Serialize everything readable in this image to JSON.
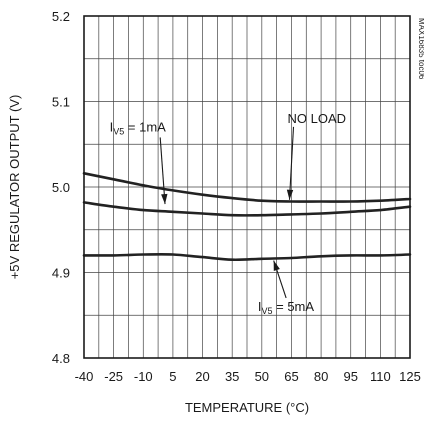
{
  "chart_data": {
    "type": "line",
    "figure_id": "MAX16835 toc06",
    "xlabel": "TEMPERATURE (°C)",
    "ylabel": "+5V REGULATOR OUTPUT (V)",
    "xlim": [
      -40,
      125
    ],
    "ylim": [
      4.8,
      5.2
    ],
    "xticks": [
      -40,
      -25,
      -10,
      5,
      20,
      35,
      50,
      65,
      80,
      95,
      110,
      125
    ],
    "yticks": [
      4.8,
      4.9,
      5.0,
      5.1,
      5.2
    ],
    "x_gridlines": [
      -40,
      -32.5,
      -25,
      -17.5,
      -10,
      -2.5,
      5,
      12.5,
      20,
      27.5,
      35,
      42.5,
      50,
      57.5,
      65,
      72.5,
      80,
      87.5,
      95,
      102.5,
      110,
      117.5,
      125
    ],
    "y_gridlines": [
      4.8,
      4.85,
      4.9,
      4.95,
      5.0,
      5.05,
      5.1,
      5.15,
      5.2
    ],
    "grid": true,
    "series": [
      {
        "name": "NO LOAD",
        "x": [
          -40,
          -25,
          -10,
          5,
          20,
          35,
          50,
          65,
          80,
          95,
          110,
          125
        ],
        "y": [
          5.016,
          5.009,
          5.002,
          4.996,
          4.991,
          4.987,
          4.984,
          4.983,
          4.983,
          4.983,
          4.984,
          4.986
        ]
      },
      {
        "name": "IV5 = 1mA",
        "x": [
          -40,
          -25,
          -10,
          5,
          20,
          35,
          50,
          65,
          80,
          95,
          110,
          125
        ],
        "y": [
          4.982,
          4.977,
          4.973,
          4.971,
          4.969,
          4.967,
          4.967,
          4.968,
          4.969,
          4.971,
          4.973,
          4.977
        ]
      },
      {
        "name": "IV5 = 5mA",
        "x": [
          -40,
          -25,
          -10,
          5,
          20,
          35,
          50,
          65,
          80,
          95,
          110,
          125
        ],
        "y": [
          4.92,
          4.92,
          4.921,
          4.921,
          4.918,
          4.915,
          4.916,
          4.917,
          4.919,
          4.92,
          4.92,
          4.921
        ]
      }
    ],
    "annotations": [
      {
        "main": "I",
        "sub": "V5",
        "rest": " = 1mA",
        "series": "IV5 = 1mA",
        "label_at": [
          -27,
          5.065
        ],
        "arrow_to": [
          1,
          4.98
        ]
      },
      {
        "main": "NO LOAD",
        "sub": "",
        "rest": "",
        "series": "NO LOAD",
        "label_at": [
          63,
          5.075
        ],
        "arrow_to": [
          64,
          4.985
        ]
      },
      {
        "main": "I",
        "sub": "V5",
        "rest": " = 5mA",
        "series": "IV5 = 5mA",
        "label_at": [
          48,
          4.855
        ],
        "arrow_to": [
          56,
          4.914
        ]
      }
    ]
  }
}
